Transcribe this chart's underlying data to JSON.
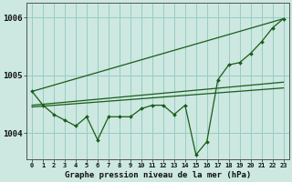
{
  "xlabel": "Graphe pression niveau de la mer (hPa)",
  "bg_color": "#cce8e0",
  "grid_color": "#99ccc4",
  "line_color": "#1a5c1a",
  "ylim": [
    1003.55,
    1006.25
  ],
  "xlim": [
    -0.5,
    23.5
  ],
  "yticks": [
    1004,
    1005,
    1006
  ],
  "xticks": [
    0,
    1,
    2,
    3,
    4,
    5,
    6,
    7,
    8,
    9,
    10,
    11,
    12,
    13,
    14,
    15,
    16,
    17,
    18,
    19,
    20,
    21,
    22,
    23
  ],
  "main_data": [
    1004.72,
    1004.48,
    1004.32,
    1004.22,
    1004.12,
    1004.28,
    1003.88,
    1004.28,
    1004.28,
    1004.28,
    1004.42,
    1004.48,
    1004.48,
    1004.32,
    1004.48,
    1003.62,
    1003.85,
    1004.92,
    1005.18,
    1005.22,
    1005.38,
    1005.58,
    1005.82,
    1005.98
  ],
  "trend1_x": [
    0,
    23
  ],
  "trend1_y": [
    1004.72,
    1005.98
  ],
  "trend2_x": [
    0,
    23
  ],
  "trend2_y": [
    1004.48,
    1004.88
  ],
  "trend3_x": [
    0,
    23
  ],
  "trend3_y": [
    1004.45,
    1004.78
  ]
}
